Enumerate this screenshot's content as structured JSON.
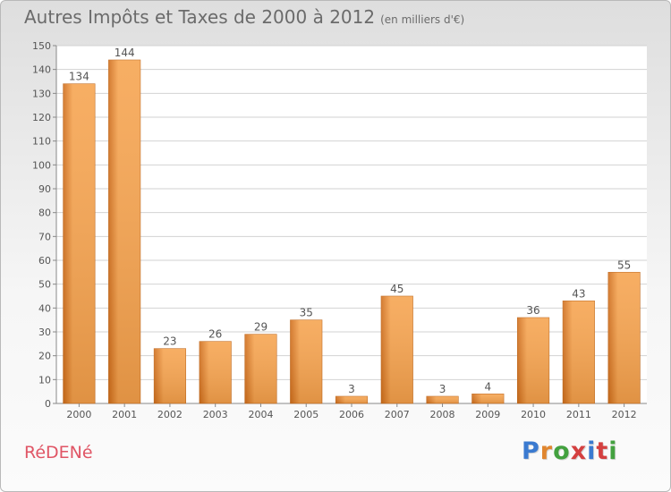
{
  "title": "Autres Impôts et Taxes de 2000 à 2012",
  "subtitle": "(en milliers d'€)",
  "commune": "RéDENé",
  "brand": {
    "text": "Proxiti",
    "letter_colors": [
      "#3a7ad0",
      "#e0862f",
      "#43a13f",
      "#d44040",
      "#3a7ad0",
      "#d44040",
      "#43a13f"
    ]
  },
  "colors": {
    "bar_light": "#f6a552",
    "bar_dark": "#cf6e1d",
    "grid": "#d2d2d2",
    "axis_text": "#555555",
    "label_text": "#555555"
  },
  "chart_data": {
    "type": "bar",
    "title": "Autres Impôts et Taxes de 2000 à 2012",
    "subtitle": "(en milliers d'€)",
    "categories": [
      "2000",
      "2001",
      "2002",
      "2003",
      "2004",
      "2005",
      "2006",
      "2007",
      "2008",
      "2009",
      "2010",
      "2011",
      "2012"
    ],
    "values": [
      134,
      144,
      23,
      26,
      29,
      35,
      3,
      45,
      3,
      4,
      36,
      43,
      55
    ],
    "ylim": [
      0,
      150
    ],
    "yticks": [
      0,
      10,
      20,
      30,
      40,
      50,
      60,
      70,
      80,
      90,
      100,
      110,
      120,
      130,
      140,
      150
    ],
    "grid": true,
    "xlabel": "",
    "ylabel": ""
  }
}
